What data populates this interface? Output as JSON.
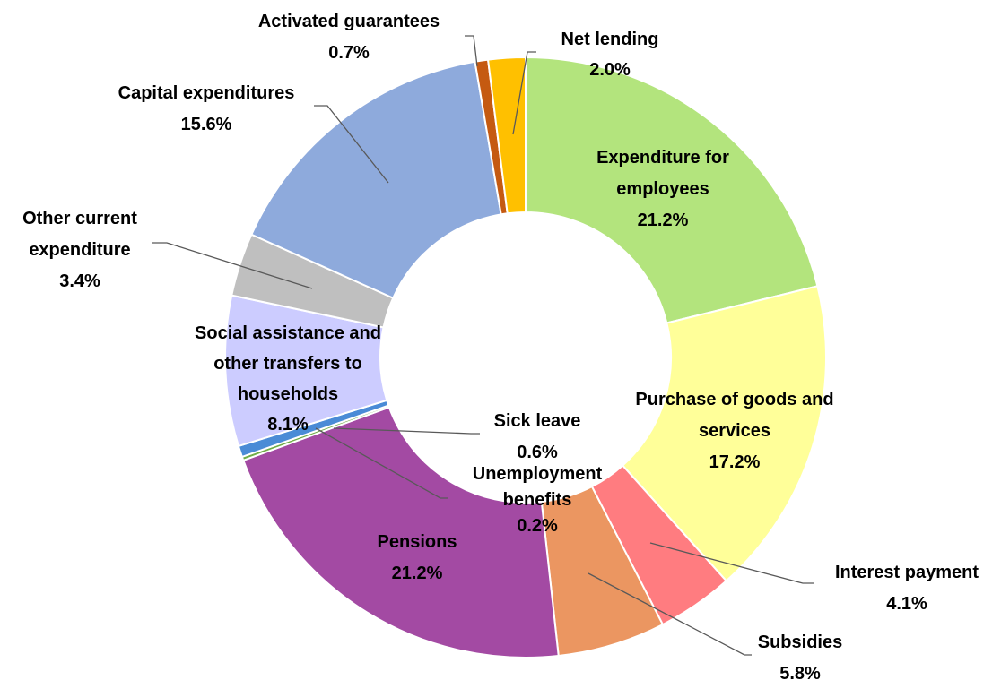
{
  "chart_data": {
    "type": "pie",
    "variant": "donut",
    "title": "",
    "legend": "none",
    "slices": [
      {
        "name": "Expenditure for employees",
        "label_lines": [
          "Expenditure for",
          "employees"
        ],
        "value": 21.2,
        "value_label": "21.2%",
        "color": "#b3e47d"
      },
      {
        "name": "Purchase of goods and services",
        "label_lines": [
          "Purchase of goods and",
          "services"
        ],
        "value": 17.2,
        "value_label": "17.2%",
        "color": "#ffff99"
      },
      {
        "name": "Interest payment",
        "label_lines": [
          "Interest payment"
        ],
        "value": 4.1,
        "value_label": "4.1%",
        "color": "#ff7c80"
      },
      {
        "name": "Subsidies",
        "label_lines": [
          "Subsidies"
        ],
        "value": 5.8,
        "value_label": "5.8%",
        "color": "#eb9661"
      },
      {
        "name": "Pensions",
        "label_lines": [
          "Pensions"
        ],
        "value": 21.2,
        "value_label": "21.2%",
        "color": "#a34aa3"
      },
      {
        "name": "Unemployment benefits",
        "label_lines": [
          "Unemployment",
          "benefits"
        ],
        "value": 0.2,
        "value_label": "0.2%",
        "color": "#70ad47"
      },
      {
        "name": "Sick leave",
        "label_lines": [
          "Sick leave"
        ],
        "value": 0.6,
        "value_label": "0.6%",
        "color": "#4a8bd6"
      },
      {
        "name": "Social assistance and other transfers to households",
        "label_lines": [
          "Social assistance and",
          "other transfers to",
          "households"
        ],
        "value": 8.1,
        "value_label": "8.1%",
        "color": "#ccccff"
      },
      {
        "name": "Other current expenditure",
        "label_lines": [
          "Other current",
          "expenditure"
        ],
        "value": 3.4,
        "value_label": "3.4%",
        "color": "#bfbfbf"
      },
      {
        "name": "Capital expenditures",
        "label_lines": [
          "Capital expenditures"
        ],
        "value": 15.6,
        "value_label": "15.6%",
        "color": "#8eaadc"
      },
      {
        "name": "Activated guarantees",
        "label_lines": [
          "Activated guarantees"
        ],
        "value": 0.7,
        "value_label": "0.7%",
        "color": "#c55a11"
      },
      {
        "name": "Net lending",
        "label_lines": [
          "Net lending"
        ],
        "value": 2.0,
        "value_label": "2.0%",
        "color": "#ffc000"
      }
    ]
  }
}
